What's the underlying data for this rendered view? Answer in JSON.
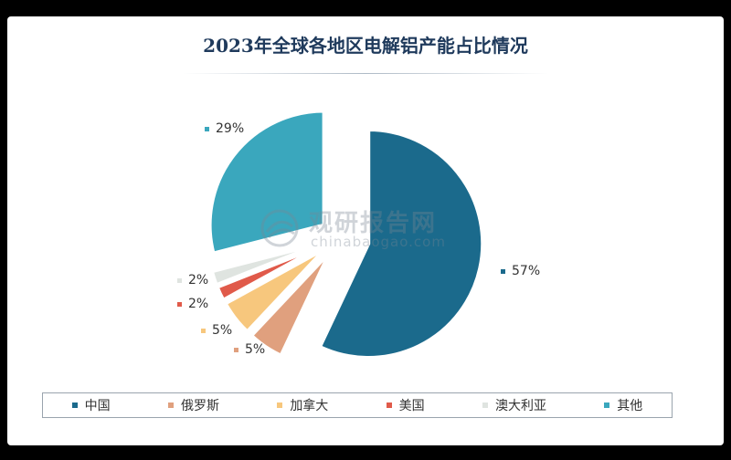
{
  "chart_data": {
    "type": "pie",
    "title": "2023年全球各地区电解铝产能占比情况",
    "slices": [
      {
        "name": "中国",
        "value": 57,
        "label": "57%",
        "color": "#1b6a8c"
      },
      {
        "name": "俄罗斯",
        "value": 5,
        "label": "5%",
        "color": "#e0a07e"
      },
      {
        "name": "加拿大",
        "value": 5,
        "label": "5%",
        "color": "#f7c77d"
      },
      {
        "name": "美国",
        "value": 2,
        "label": "2%",
        "color": "#e05a4a"
      },
      {
        "name": "澳大利亚",
        "value": 2,
        "label": "2%",
        "color": "#dfe4e0"
      },
      {
        "name": "其他",
        "value": 29,
        "label": "29%",
        "color": "#3aa7bd"
      }
    ],
    "legend_position": "bottom"
  },
  "watermark": {
    "cn": "观研报告网",
    "en": "chinabaogao.com"
  }
}
